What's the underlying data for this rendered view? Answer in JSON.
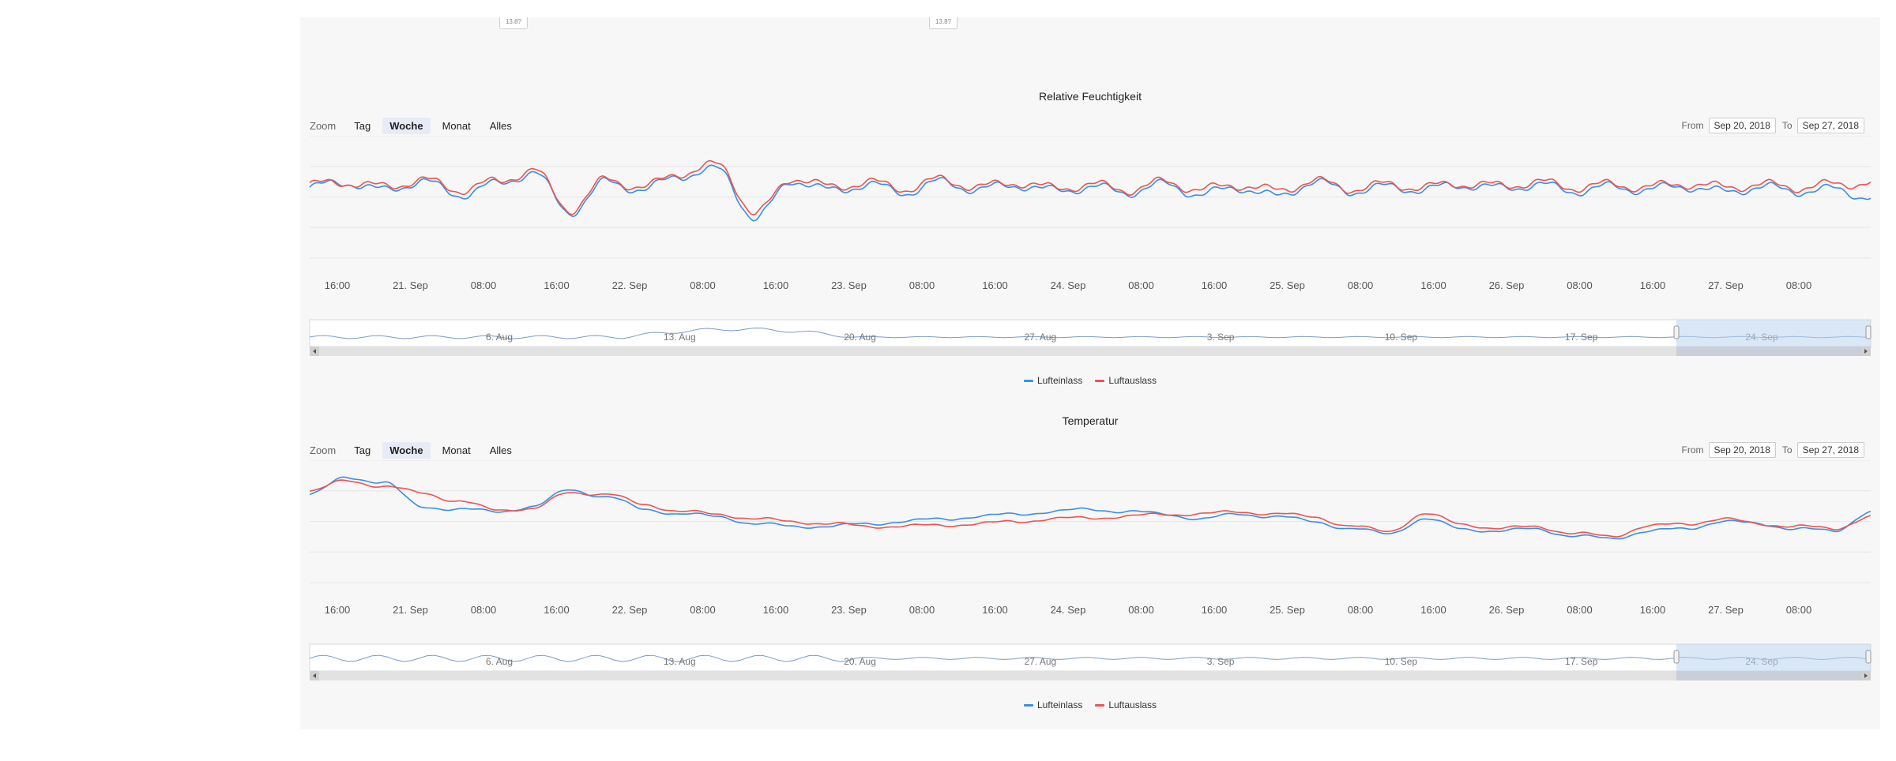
{
  "top_tags": [
    "13.8?",
    "13.8?"
  ],
  "colors": {
    "series1": "#3a8ee6",
    "series2": "#ef5350",
    "grid": "#e6e6e6",
    "navigator_mask": "#bcd3ee",
    "scrollbar": "#e2e2e2"
  },
  "charts": [
    {
      "title": "Relative Feuchtigkeit",
      "zoom_label": "Zoom",
      "zoom_buttons": [
        "Tag",
        "Woche",
        "Monat",
        "Alles"
      ],
      "zoom_active": "Woche",
      "range_from_label": "From",
      "range_from": "Sep 20, 2018",
      "range_to_label": "To",
      "range_to": "Sep 27, 2018",
      "x_ticks": [
        "16:00",
        "21. Sep",
        "08:00",
        "16:00",
        "22. Sep",
        "08:00",
        "16:00",
        "23. Sep",
        "08:00",
        "16:00",
        "24. Sep",
        "08:00",
        "16:00",
        "25. Sep",
        "08:00",
        "16:00",
        "26. Sep",
        "08:00",
        "16:00",
        "27. Sep",
        "08:00"
      ],
      "navigator_ticks": [
        "6. Aug",
        "13. Aug",
        "20. Aug",
        "27. Aug",
        "3. Sep",
        "10. Sep",
        "17. Sep",
        "24. Sep"
      ],
      "legend": [
        "Lufteinlass",
        "Luftauslass"
      ]
    },
    {
      "title": "Temperatur",
      "zoom_label": "Zoom",
      "zoom_buttons": [
        "Tag",
        "Woche",
        "Monat",
        "Alles"
      ],
      "zoom_active": "Woche",
      "range_from_label": "From",
      "range_from": "Sep 20, 2018",
      "range_to_label": "To",
      "range_to": "Sep 27, 2018",
      "x_ticks": [
        "16:00",
        "21. Sep",
        "08:00",
        "16:00",
        "22. Sep",
        "08:00",
        "16:00",
        "23. Sep",
        "08:00",
        "16:00",
        "24. Sep",
        "08:00",
        "16:00",
        "25. Sep",
        "08:00",
        "16:00",
        "26. Sep",
        "08:00",
        "16:00",
        "27. Sep",
        "08:00"
      ],
      "navigator_ticks": [
        "6. Aug",
        "13. Aug",
        "20. Aug",
        "27. Aug",
        "3. Sep",
        "10. Sep",
        "17. Sep",
        "24. Sep"
      ],
      "legend": [
        "Lufteinlass",
        "Luftauslass"
      ]
    }
  ],
  "chart_data": [
    {
      "type": "line",
      "title": "Relative Feuchtigkeit",
      "x_range": [
        "2018-09-20 12:00",
        "2018-09-27 12:00"
      ],
      "ylim": [
        0,
        100
      ],
      "grid": true,
      "legend_position": "bottom",
      "series": [
        {
          "name": "Lufteinlass",
          "hours": [
            0,
            4,
            8,
            12,
            16,
            20,
            24,
            28,
            32,
            36,
            40,
            44,
            48,
            52,
            56,
            60,
            64,
            68,
            72,
            76,
            80,
            84,
            88,
            92,
            96,
            100,
            104,
            108,
            112,
            116,
            120,
            124,
            128,
            132,
            136,
            140,
            144,
            148,
            152,
            156,
            160,
            164,
            168
          ],
          "values": [
            58,
            62,
            55,
            63,
            52,
            60,
            70,
            38,
            62,
            56,
            68,
            72,
            32,
            64,
            55,
            60,
            54,
            62,
            56,
            60,
            55,
            58,
            54,
            60,
            52,
            58,
            50,
            62,
            55,
            58,
            56,
            60,
            57,
            60,
            55,
            58,
            56,
            59,
            54,
            58,
            55,
            56,
            50
          ]
        },
        {
          "name": "Luftauslass",
          "hours": [
            0,
            4,
            8,
            12,
            16,
            20,
            24,
            28,
            32,
            36,
            40,
            44,
            48,
            52,
            56,
            60,
            64,
            68,
            72,
            76,
            80,
            84,
            88,
            92,
            96,
            100,
            104,
            108,
            112,
            116,
            120,
            124,
            128,
            132,
            136,
            140,
            144,
            148,
            152,
            156,
            160,
            164,
            168
          ],
          "values": [
            60,
            62,
            58,
            64,
            56,
            62,
            72,
            40,
            64,
            58,
            70,
            76,
            36,
            66,
            58,
            62,
            57,
            64,
            58,
            62,
            57,
            60,
            56,
            62,
            56,
            60,
            55,
            63,
            57,
            60,
            58,
            61,
            59,
            62,
            58,
            60,
            58,
            61,
            58,
            60,
            58,
            60,
            62
          ]
        }
      ]
    },
    {
      "type": "line",
      "title": "Temperatur",
      "x_range": [
        "2018-09-20 12:00",
        "2018-09-27 12:00"
      ],
      "ylim": [
        0,
        100
      ],
      "grid": true,
      "legend_position": "bottom",
      "series": [
        {
          "name": "Lufteinlass",
          "hours": [
            0,
            4,
            8,
            12,
            16,
            20,
            24,
            28,
            32,
            36,
            40,
            44,
            48,
            52,
            56,
            60,
            64,
            68,
            72,
            76,
            80,
            84,
            88,
            92,
            96,
            100,
            104,
            108,
            112,
            116,
            120,
            124,
            128,
            132,
            136,
            140,
            144,
            148,
            152,
            156,
            160,
            164,
            168
          ],
          "values": [
            72,
            86,
            82,
            62,
            60,
            58,
            62,
            76,
            70,
            60,
            56,
            54,
            48,
            46,
            46,
            48,
            50,
            52,
            54,
            56,
            58,
            60,
            58,
            56,
            52,
            56,
            54,
            50,
            44,
            40,
            52,
            44,
            42,
            44,
            38,
            36,
            42,
            44,
            50,
            48,
            44,
            42,
            58
          ]
        },
        {
          "name": "Luftauslass",
          "hours": [
            0,
            4,
            8,
            12,
            16,
            20,
            24,
            28,
            32,
            36,
            40,
            44,
            48,
            52,
            56,
            60,
            64,
            68,
            72,
            76,
            80,
            84,
            88,
            92,
            96,
            100,
            104,
            108,
            112,
            116,
            120,
            124,
            128,
            132,
            136,
            140,
            144,
            148,
            152,
            156,
            160,
            164,
            168
          ],
          "values": [
            74,
            84,
            78,
            74,
            66,
            60,
            60,
            74,
            72,
            64,
            58,
            56,
            52,
            50,
            48,
            46,
            46,
            47,
            48,
            50,
            52,
            53,
            54,
            56,
            56,
            58,
            56,
            54,
            46,
            42,
            56,
            48,
            44,
            46,
            40,
            38,
            46,
            48,
            52,
            48,
            46,
            44,
            54
          ]
        }
      ]
    }
  ]
}
